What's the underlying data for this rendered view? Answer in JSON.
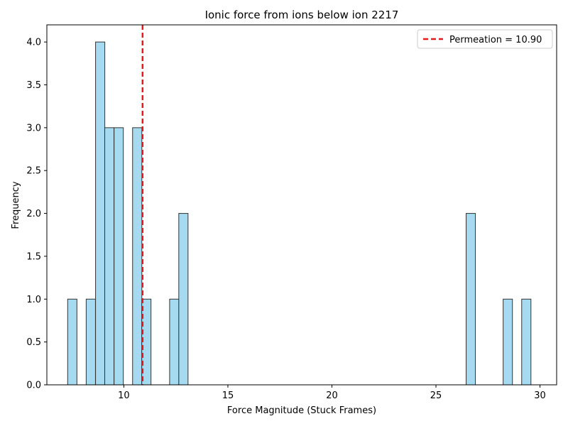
{
  "chart_data": {
    "type": "bar",
    "title": "Ionic force from ions below ion 2217",
    "xlabel": "Force Magnitude (Stuck Frames)",
    "ylabel": "Frequency",
    "xlim": [
      6.3,
      30.8
    ],
    "ylim": [
      0,
      4.2
    ],
    "xticks": [
      10,
      15,
      20,
      25,
      30
    ],
    "xtick_labels": [
      "10",
      "15",
      "20",
      "25",
      "30"
    ],
    "yticks": [
      0,
      0.5,
      1,
      1.5,
      2,
      2.5,
      3,
      3.5,
      4
    ],
    "ytick_labels": [
      "0.0",
      "0.5",
      "1.0",
      "1.5",
      "2.0",
      "2.5",
      "3.0",
      "3.5",
      "4.0"
    ],
    "bin_width": 0.445,
    "bins": [
      {
        "start": 7.3,
        "count": 1
      },
      {
        "start": 8.19,
        "count": 1
      },
      {
        "start": 8.64,
        "count": 4
      },
      {
        "start": 9.08,
        "count": 3
      },
      {
        "start": 9.53,
        "count": 3
      },
      {
        "start": 10.42,
        "count": 3
      },
      {
        "start": 10.86,
        "count": 1
      },
      {
        "start": 12.2,
        "count": 1
      },
      {
        "start": 12.64,
        "count": 2
      },
      {
        "start": 26.45,
        "count": 2
      },
      {
        "start": 28.23,
        "count": 1
      },
      {
        "start": 29.12,
        "count": 1
      }
    ],
    "bar_color": "#87CEEB",
    "bar_edge_color": "#333333",
    "reference_line": {
      "x": 10.9,
      "color": "#e41a1c",
      "style": "dashed"
    },
    "legend": {
      "label": "Permeation = 10.90",
      "placement": "top-right"
    },
    "grid": false
  }
}
